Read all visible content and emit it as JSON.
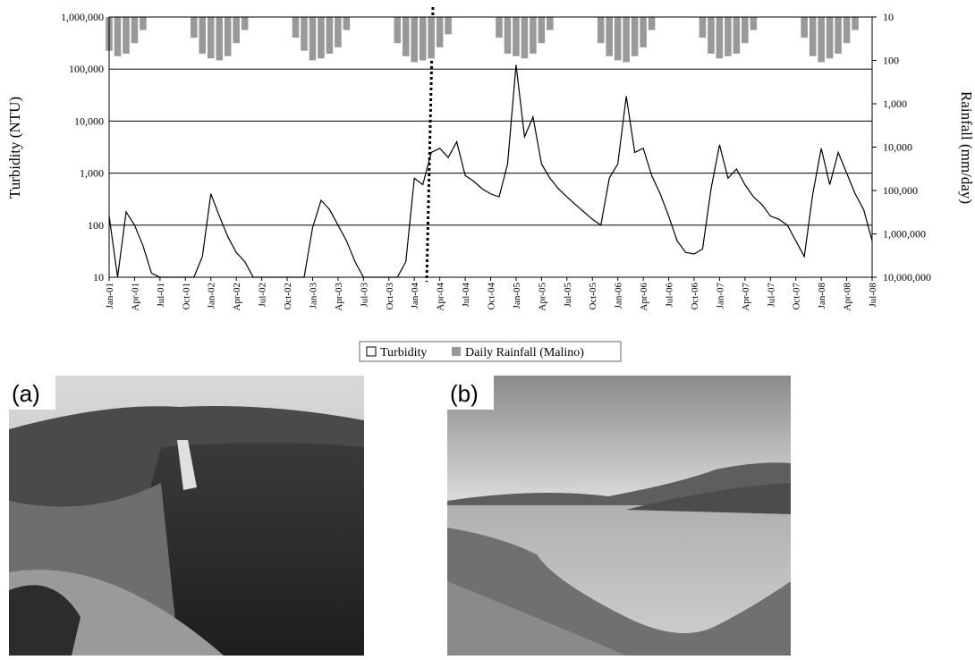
{
  "chart_data": {
    "type": "line",
    "x_label": null,
    "y_label": "Turbidity (NTU)",
    "y2_label": "Rainfall (mm/day)",
    "log_scale": true,
    "grid": true,
    "legend": "bottom",
    "categories": [
      "Jan-01",
      null,
      null,
      "Apr-01",
      null,
      null,
      "Jul-01",
      null,
      null,
      "Oct-01",
      null,
      null,
      "Jan-02",
      null,
      null,
      "Apr-02",
      null,
      null,
      "Jul-02",
      null,
      null,
      "Oct-02",
      null,
      null,
      "Jan-03",
      null,
      null,
      "Apr-03",
      null,
      null,
      "Jul-03",
      null,
      null,
      "Oct-03",
      null,
      null,
      "Jan-04",
      null,
      null,
      "Apr-04",
      null,
      null,
      "Jul-04",
      null,
      null,
      "Oct-04",
      null,
      null,
      "Jan-05",
      null,
      null,
      "Apr-05",
      null,
      null,
      "Jul-05",
      null,
      null,
      "Oct-05",
      null,
      null,
      "Jan-06",
      null,
      null,
      "Apr-06",
      null,
      null,
      "Jul-06",
      null,
      null,
      "Oct-06",
      null,
      null,
      "Jan-07",
      null,
      null,
      "Apr-07",
      null,
      null,
      "Jul-07",
      null,
      null,
      "Oct-07",
      null,
      null,
      "Jan-08",
      null,
      null,
      "Apr-08",
      null,
      null,
      "Jul-08"
    ],
    "series": [
      {
        "name": "Turbidity",
        "type": "line",
        "color": "#000000",
        "values": [
          150,
          10,
          180,
          100,
          40,
          12,
          10,
          10,
          10,
          10,
          10,
          25,
          400,
          150,
          60,
          30,
          20,
          10,
          10,
          10,
          10,
          10,
          10,
          10,
          90,
          300,
          200,
          100,
          50,
          20,
          10,
          10,
          10,
          10,
          10,
          20,
          800,
          600,
          2500,
          3000,
          2000,
          4000,
          900,
          700,
          500,
          400,
          350,
          1500,
          120000,
          5000,
          12000,
          1500,
          800,
          500,
          350,
          250,
          180,
          130,
          100,
          800,
          1500,
          30000,
          2500,
          3000,
          900,
          400,
          150,
          50,
          30,
          28,
          35,
          500,
          3500,
          800,
          1200,
          600,
          350,
          250,
          150,
          130,
          100,
          50,
          25,
          400,
          3000,
          600,
          2500,
          1000,
          400,
          200,
          50
        ]
      },
      {
        "name": "Daily Rainfall (Malino)",
        "type": "bar",
        "axis": "y2",
        "color": "#999999",
        "values": [
          60,
          80,
          70,
          40,
          20,
          null,
          null,
          null,
          null,
          null,
          30,
          70,
          90,
          100,
          80,
          40,
          20,
          null,
          null,
          null,
          null,
          null,
          30,
          60,
          100,
          90,
          70,
          50,
          20,
          null,
          null,
          null,
          null,
          null,
          40,
          80,
          110,
          100,
          90,
          50,
          25,
          null,
          null,
          null,
          null,
          null,
          30,
          70,
          80,
          90,
          70,
          40,
          20,
          null,
          null,
          null,
          null,
          null,
          40,
          80,
          100,
          110,
          80,
          50,
          20,
          null,
          null,
          null,
          null,
          null,
          30,
          70,
          90,
          80,
          70,
          40,
          20,
          null,
          null,
          null,
          null,
          null,
          30,
          80,
          110,
          90,
          70,
          40,
          20,
          null,
          null
        ]
      }
    ],
    "ylim": [
      10,
      1000000
    ],
    "yticks": [
      10,
      100,
      {
        "value": 1000,
        "label": "1,000"
      },
      {
        "value": 10000,
        "label": "10,000"
      },
      {
        "value": 100000,
        "label": "100,000"
      },
      {
        "value": 1000000,
        "label": "1,000,000"
      }
    ],
    "y2lim": [
      10000000,
      10
    ],
    "y2ticks": [
      10,
      100,
      {
        "value": 1000,
        "label": "1,000"
      },
      {
        "value": 10000,
        "label": "10,000"
      },
      {
        "value": 100000,
        "label": "100,000"
      },
      {
        "value": 1000000,
        "label": "1,000,000"
      },
      {
        "value": 10000000,
        "label": "10,000,000"
      }
    ]
  },
  "photos": [
    {
      "label": "(a)"
    },
    {
      "label": "(b)"
    }
  ]
}
